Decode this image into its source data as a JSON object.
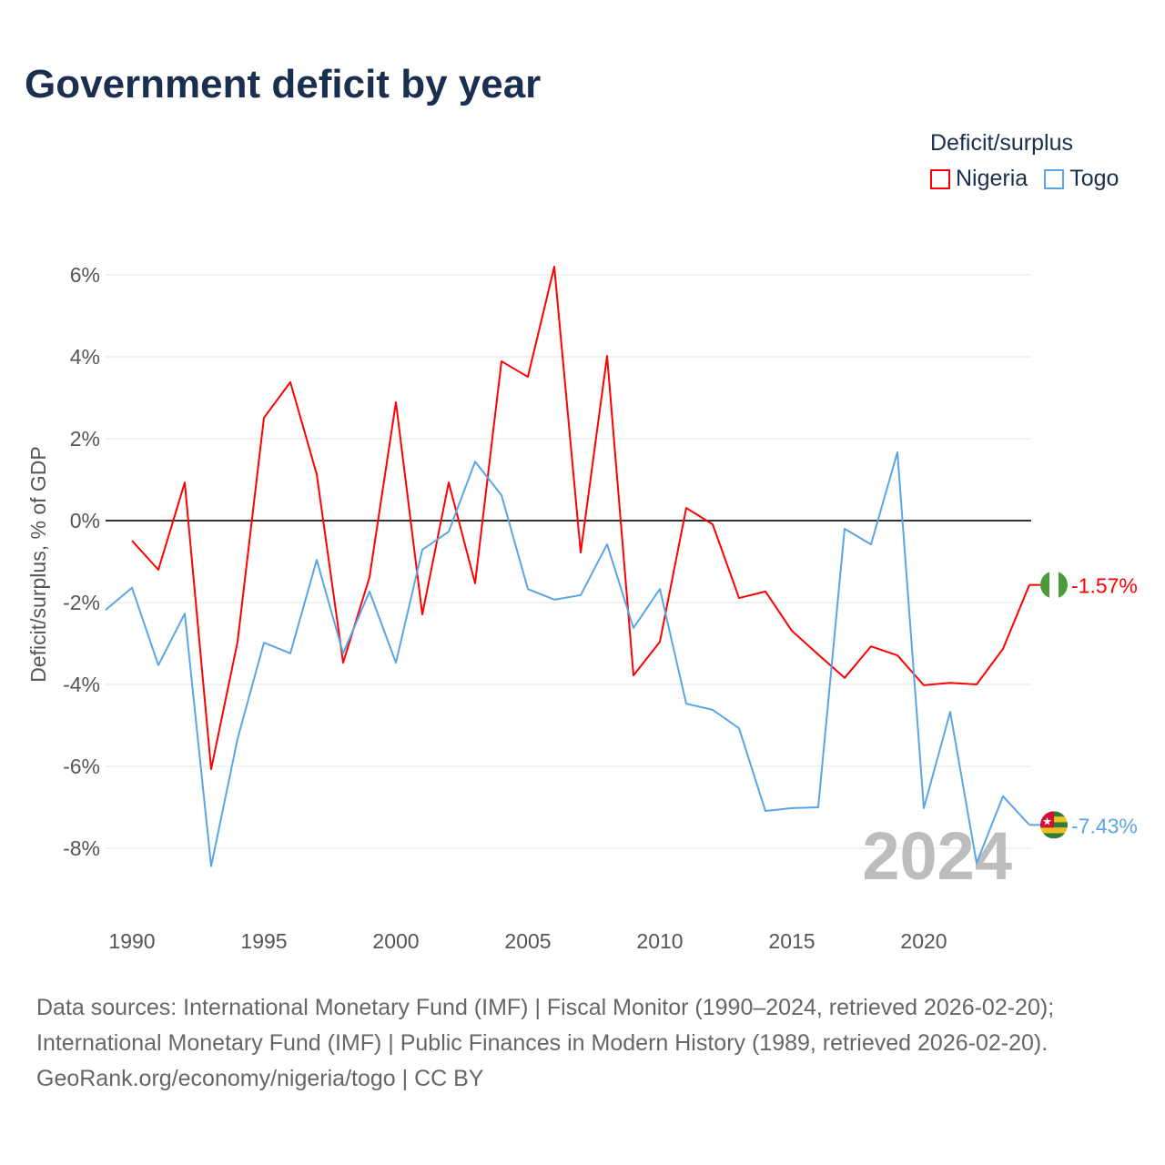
{
  "chart_data": {
    "type": "line",
    "title": "Government deficit by year",
    "ylabel": "Deficit/surplus, % of GDP",
    "xlabel": "",
    "legend_title": "Deficit/surplus",
    "legend_placement": "top-right",
    "ylim": [
      -9.6,
      6.4
    ],
    "xlim": [
      1989,
      2024
    ],
    "y_ticks": [
      6,
      4,
      2,
      0,
      -2,
      -4,
      -6,
      -8
    ],
    "y_tick_labels": [
      "6%",
      "4%",
      "2%",
      "0%",
      "-2%",
      "-4%",
      "-6%",
      "-8%"
    ],
    "x_ticks": [
      1990,
      1995,
      2000,
      2005,
      2010,
      2015,
      2020
    ],
    "x_tick_labels": [
      "1990",
      "1995",
      "2000",
      "2005",
      "2010",
      "2015",
      "2020"
    ],
    "grid": true,
    "year_watermark": "2024",
    "series": [
      {
        "name": "Nigeria",
        "color": "#ff0000",
        "end_label": "-1.57%",
        "flag": "nigeria-flag",
        "x": [
          1990,
          1991,
          1992,
          1993,
          1994,
          1995,
          1996,
          1997,
          1998,
          1999,
          2000,
          2001,
          2002,
          2003,
          2004,
          2005,
          2006,
          2007,
          2008,
          2009,
          2010,
          2011,
          2012,
          2013,
          2014,
          2015,
          2016,
          2017,
          2018,
          2019,
          2020,
          2021,
          2022,
          2023,
          2024
        ],
        "values": [
          -0.49,
          -1.2,
          0.93,
          -6.07,
          -2.96,
          2.51,
          3.38,
          1.13,
          -3.47,
          -1.38,
          2.89,
          -2.29,
          0.93,
          -1.53,
          3.89,
          3.51,
          6.2,
          -0.78,
          4.02,
          -3.78,
          -2.96,
          0.31,
          -0.09,
          -1.89,
          -1.73,
          -2.69,
          -3.27,
          -3.84,
          -3.07,
          -3.29,
          -4.02,
          -3.96,
          -4.0,
          -3.13,
          -1.57
        ]
      },
      {
        "name": "Togo",
        "color": "#5aa5e6",
        "end_label": "-7.43%",
        "flag": "togo-flag",
        "x": [
          1989,
          1990,
          1991,
          1992,
          1993,
          1994,
          1995,
          1996,
          1997,
          1998,
          1999,
          2000,
          2001,
          2002,
          2003,
          2004,
          2005,
          2006,
          2007,
          2008,
          2009,
          2010,
          2011,
          2012,
          2013,
          2014,
          2015,
          2016,
          2017,
          2018,
          2019,
          2020,
          2021,
          2022,
          2023,
          2024
        ],
        "values": [
          -2.18,
          -1.64,
          -3.53,
          -2.27,
          -8.44,
          -5.33,
          -2.98,
          -3.24,
          -0.96,
          -3.24,
          -1.73,
          -3.47,
          -0.71,
          -0.27,
          1.44,
          0.62,
          -1.67,
          -1.93,
          -1.82,
          -0.58,
          -2.62,
          -1.67,
          -4.47,
          -4.62,
          -5.07,
          -7.09,
          -7.02,
          -7.0,
          -0.2,
          -0.58,
          1.67,
          -7.02,
          -4.67,
          -8.36,
          -6.73,
          -7.43
        ]
      }
    ]
  },
  "footer": {
    "line1": "Data sources: International Monetary Fund (IMF) | Fiscal Monitor (1990–2024, retrieved 2026-02-20);",
    "line2": "International Monetary Fund (IMF) | Public Finances in Modern History (1989, retrieved 2026-02-20).",
    "line3": "GeoRank.org/economy/nigeria/togo | CC BY"
  }
}
